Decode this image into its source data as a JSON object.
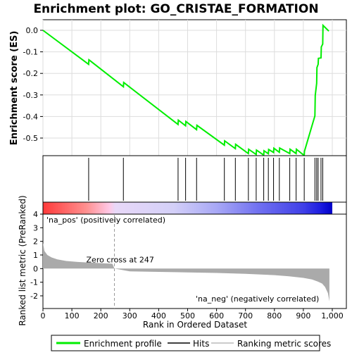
{
  "title": "Enrichment plot: GO_CRISTAE_FORMATION",
  "chart_data": [
    {
      "panel": "enrichment-profile",
      "type": "line",
      "ylabel": "Enrichment score (ES)",
      "xlim": [
        0,
        1000
      ],
      "ylim": [
        -0.58,
        0.04
      ],
      "yticks": [
        0.0,
        -0.1,
        -0.2,
        -0.3,
        -0.4,
        -0.5
      ],
      "ytick_labels": [
        "0.0",
        "-0.1",
        "-0.2",
        "-0.3",
        "-0.4",
        "-0.5"
      ],
      "series": [
        {
          "name": "Enrichment profile",
          "color": "#00ee00",
          "x": [
            0,
            158,
            159,
            278,
            279,
            467,
            468,
            493,
            494,
            531,
            532,
            627,
            628,
            665,
            666,
            710,
            711,
            737,
            738,
            763,
            764,
            779,
            780,
            797,
            798,
            817,
            818,
            853,
            854,
            875,
            876,
            903,
            904,
            940,
            941,
            946,
            947,
            951,
            952,
            961,
            962,
            967,
            968,
            988
          ],
          "y": [
            0.0,
            -0.158,
            -0.137,
            -0.262,
            -0.242,
            -0.437,
            -0.417,
            -0.443,
            -0.423,
            -0.461,
            -0.441,
            -0.533,
            -0.513,
            -0.549,
            -0.529,
            -0.572,
            -0.552,
            -0.576,
            -0.556,
            -0.579,
            -0.559,
            -0.573,
            -0.553,
            -0.567,
            -0.547,
            -0.566,
            -0.546,
            -0.572,
            -0.552,
            -0.572,
            -0.552,
            -0.581,
            -0.561,
            -0.397,
            -0.302,
            -0.246,
            -0.173,
            -0.158,
            -0.13,
            -0.128,
            -0.077,
            -0.064,
            0.023,
            -0.004
          ]
        }
      ]
    },
    {
      "panel": "hits",
      "type": "scatter",
      "name": "Hits",
      "xlim": [
        0,
        1000
      ],
      "x": [
        158,
        278,
        467,
        493,
        531,
        627,
        665,
        710,
        737,
        763,
        779,
        797,
        817,
        853,
        875,
        903,
        940,
        946,
        951,
        961,
        967
      ]
    },
    {
      "panel": "ranked-list",
      "type": "area",
      "name": "Ranking metric scores",
      "ylabel": "Ranked list metric (PreRanked)",
      "xlabel": "Rank in Ordered Dataset",
      "xlim": [
        0,
        1000
      ],
      "ylim": [
        -2.6,
        4.0
      ],
      "xticks": [
        0,
        100,
        200,
        300,
        400,
        500,
        600,
        700,
        800,
        900,
        1000
      ],
      "xtick_labels": [
        "0",
        "100",
        "200",
        "300",
        "400",
        "500",
        "600",
        "700",
        "800",
        "900",
        "1,000"
      ],
      "yticks": [
        4,
        3,
        2,
        1,
        0,
        -1,
        -2
      ],
      "ytick_labels": [
        "4",
        "3",
        "2",
        "1",
        "0",
        "-1",
        "-2"
      ],
      "zero_cross": 247,
      "zero_cross_label": "Zero cross at 247",
      "pos_label": "'na_pos' (positively correlated)",
      "neg_label": "'na_neg' (negatively correlated)",
      "x": [
        0,
        5,
        15,
        30,
        50,
        80,
        120,
        160,
        200,
        240,
        247,
        300,
        400,
        500,
        600,
        700,
        800,
        850,
        900,
        930,
        950,
        965,
        975,
        985,
        990
      ],
      "y": [
        1.9,
        1.3,
        1.0,
        0.82,
        0.68,
        0.56,
        0.49,
        0.44,
        0.4,
        0.36,
        0.0,
        -0.2,
        -0.24,
        -0.28,
        -0.32,
        -0.38,
        -0.48,
        -0.56,
        -0.68,
        -0.8,
        -0.95,
        -1.1,
        -1.35,
        -1.8,
        -2.4
      ],
      "colors": {
        "pos": "#ff0000",
        "neg": "#0000ff",
        "area": "#aaaaaa"
      }
    }
  ],
  "legend": {
    "items": [
      {
        "label": "Enrichment profile",
        "color": "#00ee00"
      },
      {
        "label": "Hits",
        "color": "#000000"
      },
      {
        "label": "Ranking metric scores",
        "color": "#bbbbbb"
      }
    ]
  }
}
